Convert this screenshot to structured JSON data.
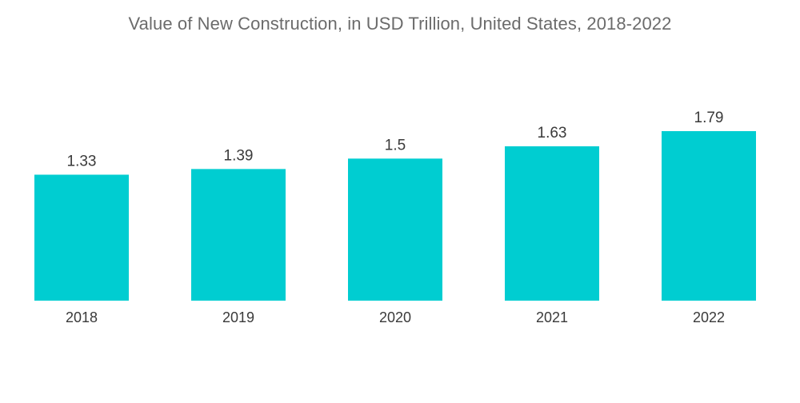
{
  "chart_data": {
    "type": "bar",
    "title": "Value of New Construction, in USD Trillion, United States, 2018-2022",
    "xlabel": "",
    "ylabel": "",
    "categories": [
      "2018",
      "2019",
      "2020",
      "2021",
      "2022"
    ],
    "values": [
      1.33,
      1.39,
      1.5,
      1.63,
      1.79
    ],
    "value_labels": [
      "1.33",
      "1.39",
      "1.5",
      "1.63",
      "1.79"
    ],
    "ylim": [
      0,
      1.79
    ],
    "grid": false,
    "legend": "none",
    "bar_color": "#00cdd1"
  }
}
